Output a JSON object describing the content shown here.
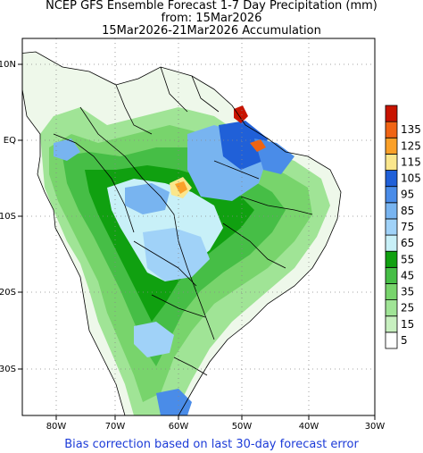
{
  "header": {
    "title_line1": "NCEP GFS Ensemble Forecast 1-7 Day Precipitation (mm)",
    "title_line2": "from: 15Mar2026",
    "title_line3": "15Mar2026-21Mar2026 Accumulation"
  },
  "footer": {
    "note": "Bias correction based on last 30-day forecast error"
  },
  "map": {
    "lon_labels": [
      "80W",
      "70W",
      "60W",
      "50W",
      "40W",
      "30W"
    ],
    "lat_labels": [
      "10N",
      "EQ",
      "10S",
      "20S",
      "30S"
    ],
    "ocean_color": "#ffffff",
    "coast_color": "#000000"
  },
  "legend": {
    "levels": [
      "5",
      "15",
      "25",
      "35",
      "45",
      "55",
      "65",
      "75",
      "85",
      "95",
      "105",
      "115",
      "125",
      "135"
    ],
    "colors": [
      "#ffffff",
      "#c8f0c0",
      "#a0e496",
      "#78d46c",
      "#46be46",
      "#10a010",
      "#c8f0f8",
      "#a0d2f8",
      "#78b4f0",
      "#4a8ce8",
      "#2060d8",
      "#fae68c",
      "#faa028",
      "#f06414",
      "#c81400"
    ]
  }
}
